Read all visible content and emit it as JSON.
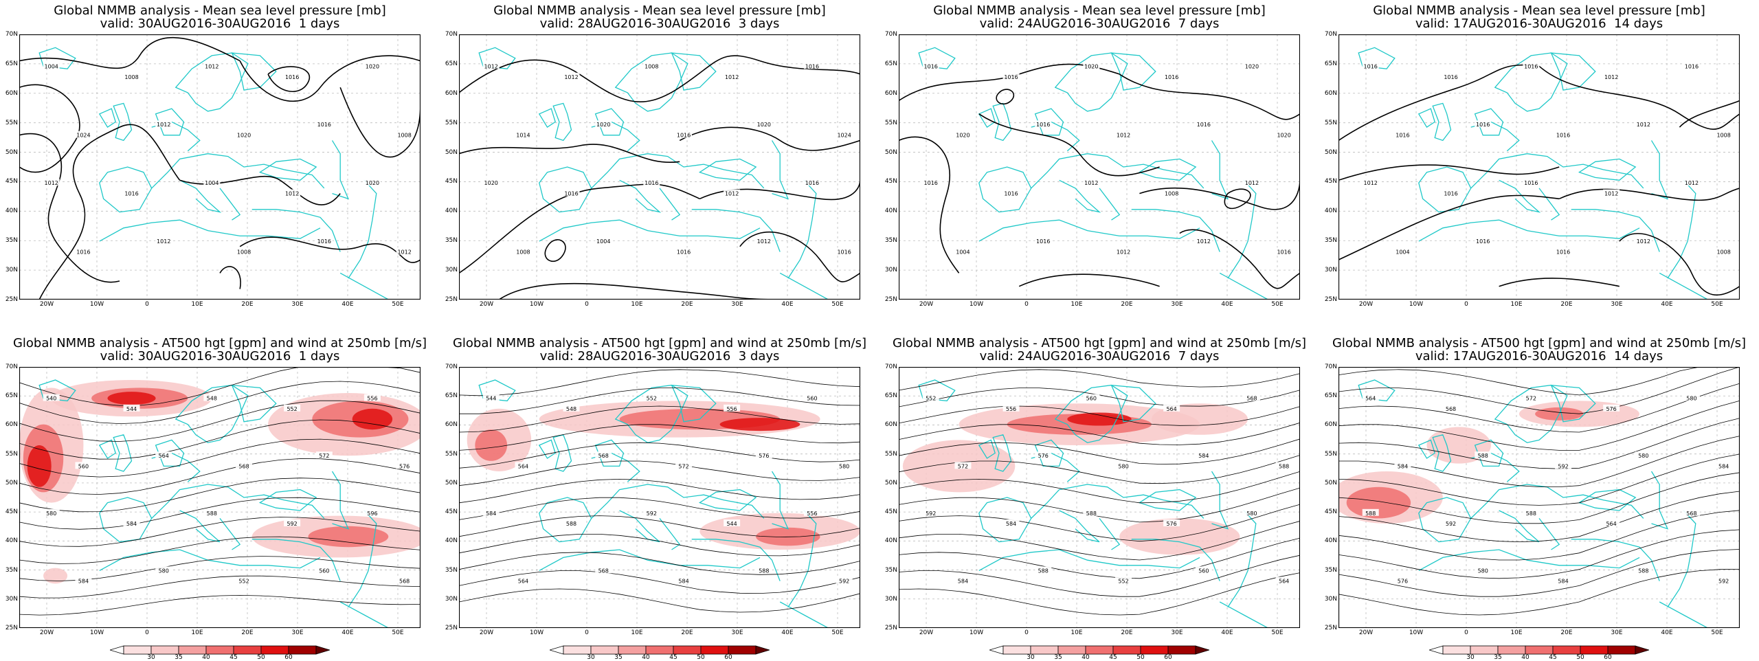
{
  "colors": {
    "coast": "#1fc8c8",
    "contour": "#000000",
    "grid": "#bbbbbb",
    "wind_light": "#f8c8c8",
    "wind_mid": "#f07070",
    "wind_strong": "#e01010",
    "wind_max": "#600000"
  },
  "icons": [
    "coastline-map",
    "colorbar-arrow"
  ],
  "lat_labels": [
    "70N",
    "65N",
    "60N",
    "55N",
    "50N",
    "45N",
    "40N",
    "35N",
    "30N",
    "25N"
  ],
  "lon_labels": [
    "20W",
    "10W",
    "0",
    "10E",
    "20E",
    "30E",
    "40E",
    "50E"
  ],
  "colorbar_labels": [
    "30",
    "35",
    "40",
    "45",
    "50",
    "60"
  ],
  "row1": [
    {
      "title": "Global NMMB analysis - Mean sea level pressure [mb]",
      "valid": "valid: 30AUG2016-30AUG2016  1 days",
      "isobars": [
        "1004",
        "1008",
        "1012",
        "1016",
        "1020",
        "1024",
        "1012",
        "1020",
        "1016",
        "1008",
        "1012",
        "1016",
        "1004",
        "1012",
        "1020",
        "1016",
        "1012",
        "1008",
        "1016",
        "1012"
      ]
    },
    {
      "title": "Global NMMB analysis - Mean sea level pressure [mb]",
      "valid": "valid: 28AUG2016-30AUG2016  3 days",
      "isobars": [
        "1012",
        "1012",
        "1008",
        "1012",
        "1016",
        "1014",
        "1020",
        "1016",
        "1020",
        "1024",
        "1020",
        "1016",
        "1016",
        "1012",
        "1016",
        "1008",
        "1004",
        "1016",
        "1012",
        "1016"
      ]
    },
    {
      "title": "Global NMMB analysis - Mean sea level pressure [mb]",
      "valid": "valid: 24AUG2016-30AUG2016  7 days",
      "isobars": [
        "1016",
        "1016",
        "1020",
        "1016",
        "1020",
        "1020",
        "1016",
        "1012",
        "1016",
        "1020",
        "1016",
        "1016",
        "1012",
        "1008",
        "1012",
        "1004",
        "1016",
        "1012",
        "1012",
        "1016"
      ]
    },
    {
      "title": "Global NMMB analysis - Mean sea level pressure [mb]",
      "valid": "valid: 17AUG2016-30AUG2016  14 days",
      "isobars": [
        "1016",
        "1016",
        "1016",
        "1012",
        "1016",
        "1016",
        "1016",
        "1016",
        "1012",
        "1008",
        "1012",
        "1016",
        "1016",
        "1012",
        "1012",
        "1004",
        "1016",
        "1016",
        "1012",
        "1008"
      ]
    }
  ],
  "row2": [
    {
      "title": "Global NMMB analysis - AT500 hgt [gpm] and wind at 250mb [m/s]",
      "valid": "valid: 30AUG2016-30AUG2016  1 days",
      "heights": [
        "540",
        "544",
        "548",
        "552",
        "556",
        "560",
        "564",
        "568",
        "572",
        "576",
        "580",
        "584",
        "588",
        "592",
        "596",
        "584",
        "580",
        "552",
        "560",
        "568"
      ]
    },
    {
      "title": "Global NMMB analysis - AT500 hgt [gpm] and wind at 250mb [m/s]",
      "valid": "valid: 28AUG2016-30AUG2016  3 days",
      "heights": [
        "544",
        "548",
        "552",
        "556",
        "560",
        "564",
        "568",
        "572",
        "576",
        "580",
        "584",
        "588",
        "592",
        "544",
        "556",
        "564",
        "568",
        "584",
        "588",
        "592"
      ]
    },
    {
      "title": "Global NMMB analysis - AT500 hgt [gpm] and wind at 250mb [m/s]",
      "valid": "valid: 24AUG2016-30AUG2016  7 days",
      "heights": [
        "552",
        "556",
        "560",
        "564",
        "568",
        "572",
        "576",
        "580",
        "584",
        "588",
        "592",
        "584",
        "588",
        "576",
        "580",
        "584",
        "588",
        "552",
        "560",
        "564"
      ]
    },
    {
      "title": "Global NMMB analysis - AT500 hgt [gpm] and wind at 250mb [m/s]",
      "valid": "valid: 17AUG2016-30AUG2016  14 days",
      "heights": [
        "564",
        "568",
        "572",
        "576",
        "580",
        "584",
        "588",
        "592",
        "580",
        "584",
        "588",
        "592",
        "588",
        "564",
        "568",
        "576",
        "580",
        "584",
        "588",
        "592"
      ]
    }
  ]
}
